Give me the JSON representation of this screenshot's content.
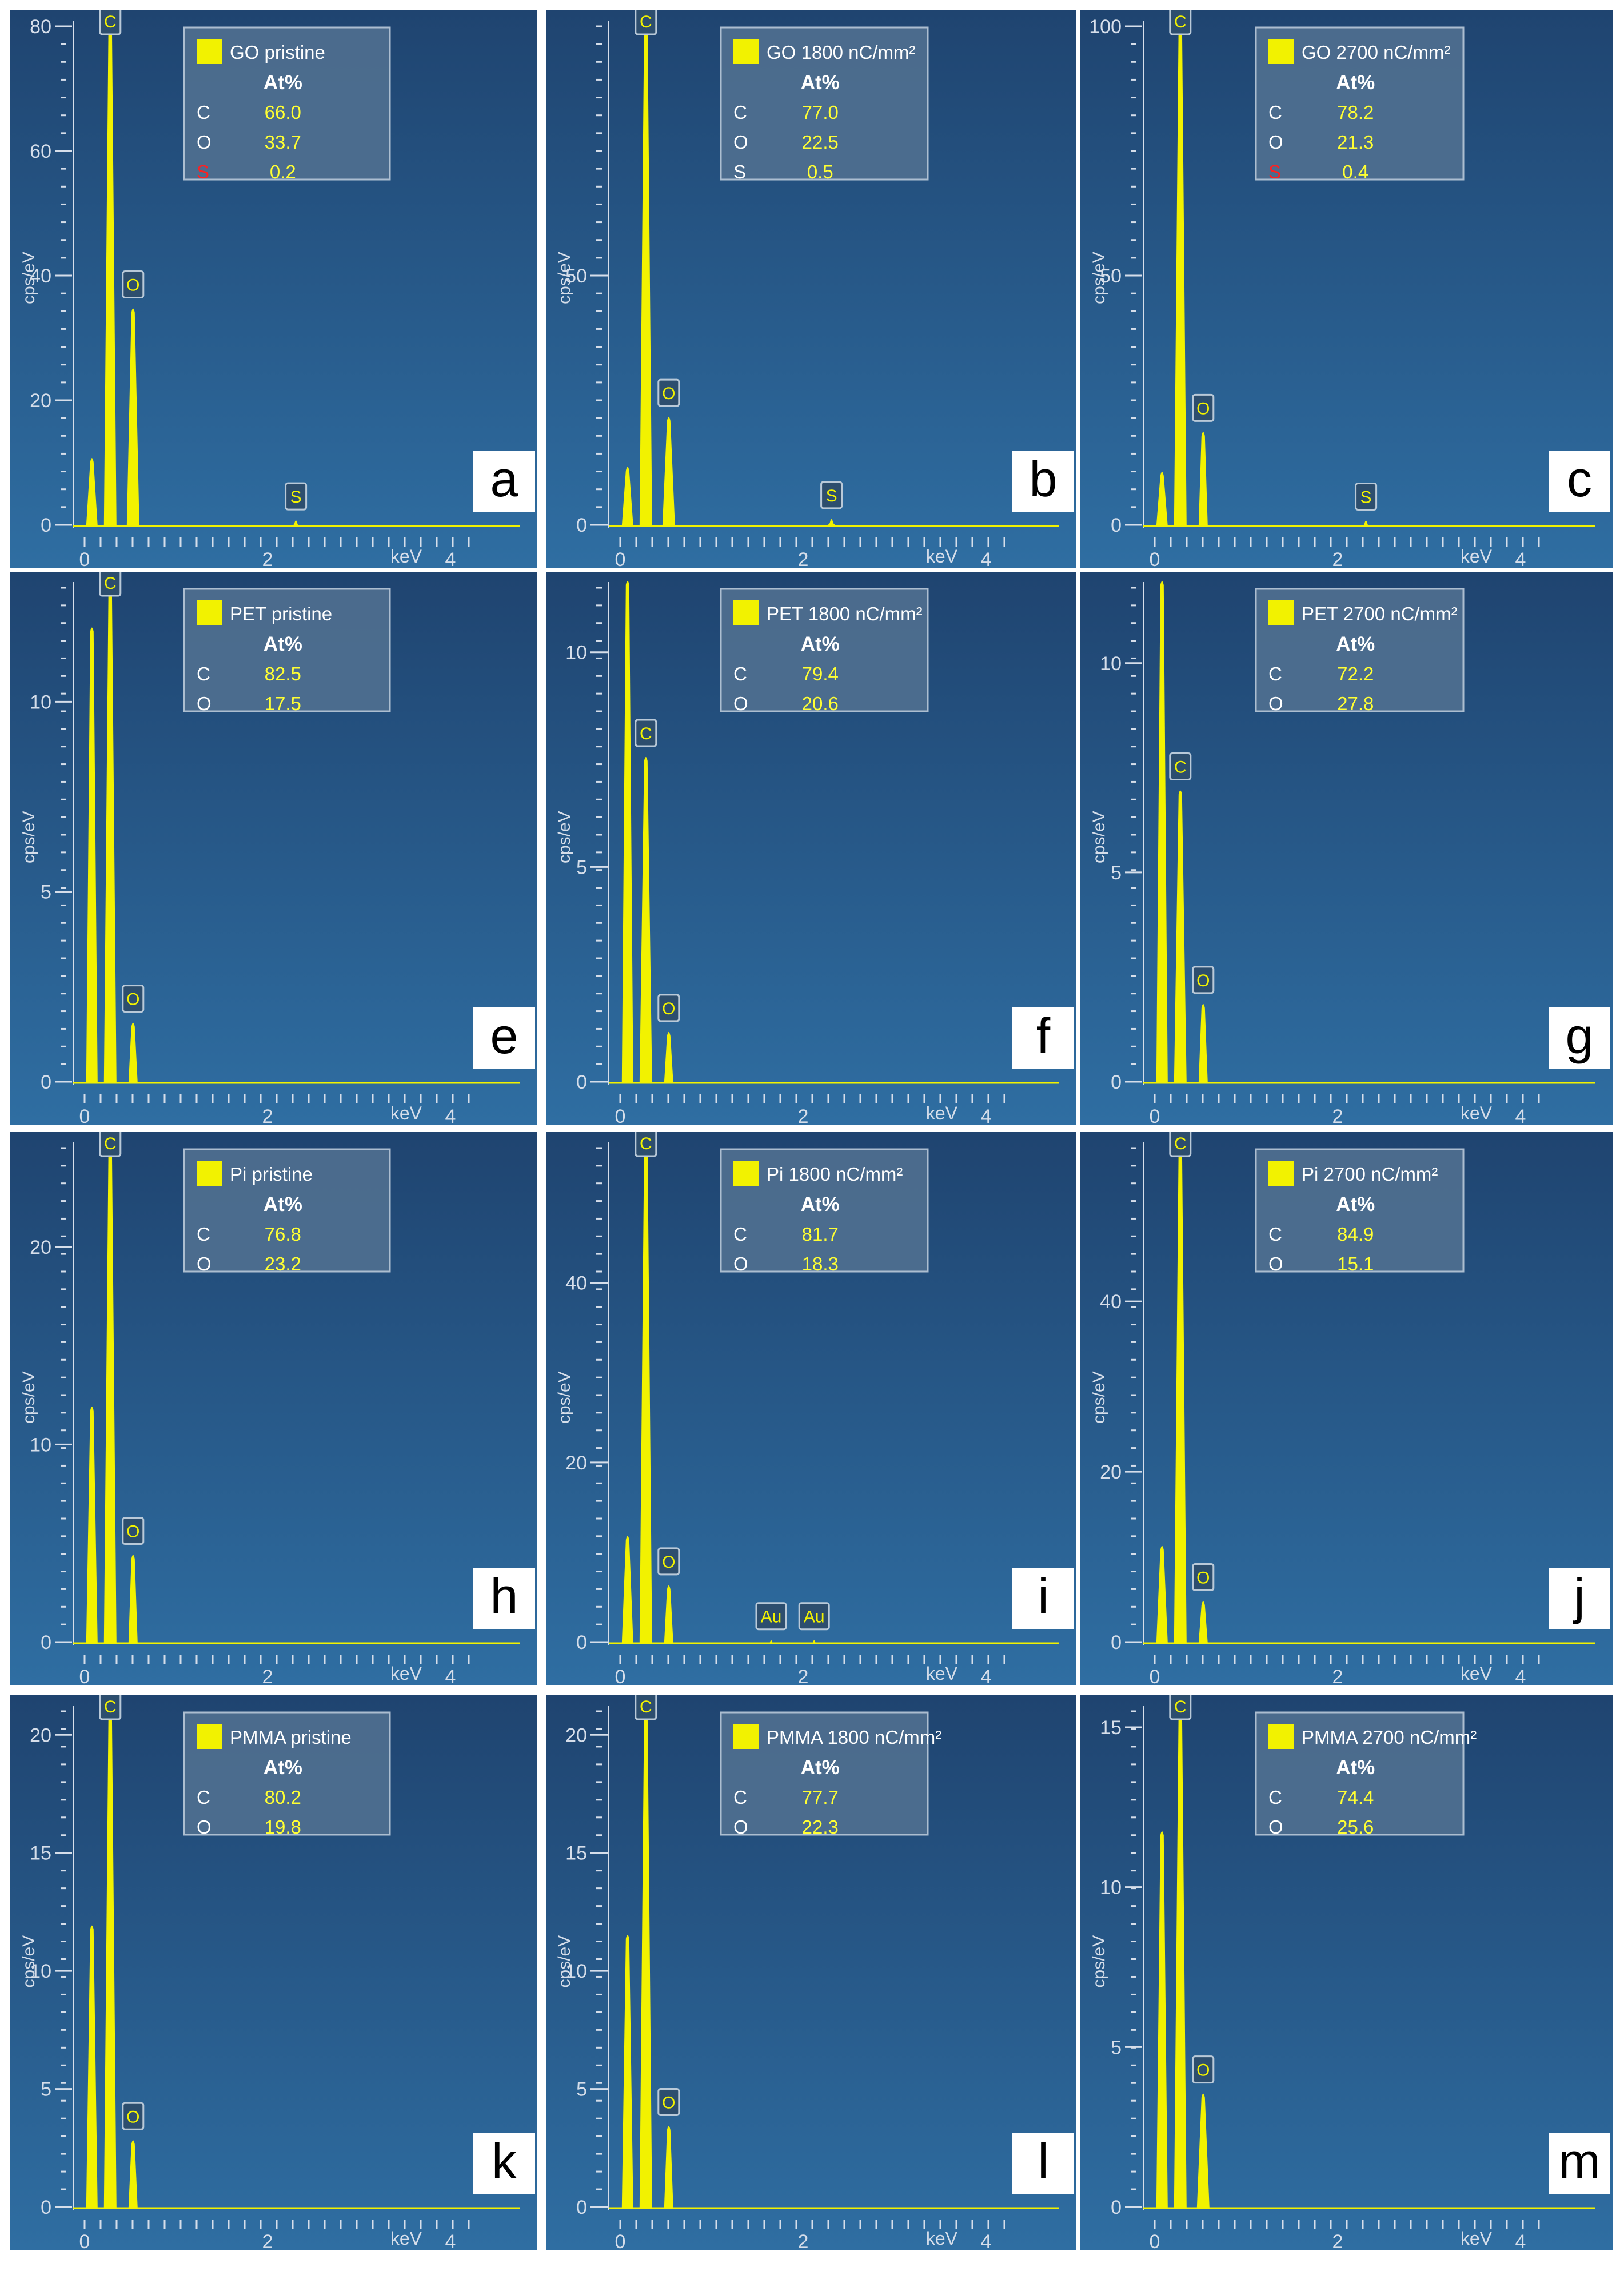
{
  "figure": {
    "x_unit_label": "keV",
    "y_axis_label": "cps/eV"
  },
  "chart_data": [
    {
      "type": "area",
      "panel_letter": "a",
      "legend_title": "GO pristine",
      "table_header": "At%",
      "composition": [
        {
          "element": "C",
          "at_percent": "66.0",
          "color": "#ffffff"
        },
        {
          "element": "O",
          "at_percent": "33.7",
          "color": "#ffffff"
        },
        {
          "element": "S",
          "at_percent": "0.2",
          "color": "#ff2020"
        }
      ],
      "ylabel": "cps/eV",
      "xlabel": "keV",
      "xlim": [
        0,
        4.8
      ],
      "ylim": [
        0,
        80
      ],
      "y_ticks": [
        0,
        20,
        40,
        60,
        80
      ],
      "x_ticks": [
        0,
        2,
        4
      ],
      "bg_peak": 11,
      "peaks": [
        {
          "label": "C",
          "x": 0.28,
          "y": 82
        },
        {
          "label": "O",
          "x": 0.53,
          "y": 35
        },
        {
          "label": "S",
          "x": 2.31,
          "y": 1
        }
      ]
    },
    {
      "type": "area",
      "panel_letter": "b",
      "legend_title": "GO 1800 nC/mm²",
      "table_header": "At%",
      "composition": [
        {
          "element": "C",
          "at_percent": "77.0",
          "color": "#ffffff"
        },
        {
          "element": "O",
          "at_percent": "22.5",
          "color": "#ffffff"
        },
        {
          "element": "S",
          "at_percent": "0.5",
          "color": "#ffffff"
        }
      ],
      "ylabel": "cps/eV",
      "xlabel": "keV",
      "xlim": [
        0,
        4.8
      ],
      "ylim": [
        0,
        100
      ],
      "y_ticks": [
        0,
        50
      ],
      "x_ticks": [
        0,
        2,
        4
      ],
      "bg_peak": 12,
      "peaks": [
        {
          "label": "C",
          "x": 0.28,
          "y": 102
        },
        {
          "label": "O",
          "x": 0.53,
          "y": 22
        },
        {
          "label": "S",
          "x": 2.31,
          "y": 1.5
        }
      ]
    },
    {
      "type": "area",
      "panel_letter": "c",
      "legend_title": "GO 2700 nC/mm²",
      "table_header": "At%",
      "composition": [
        {
          "element": "C",
          "at_percent": "78.2",
          "color": "#ffffff"
        },
        {
          "element": "O",
          "at_percent": "21.3",
          "color": "#ffffff"
        },
        {
          "element": "S",
          "at_percent": "0.4",
          "color": "#ff2020"
        }
      ],
      "ylabel": "cps/eV",
      "xlabel": "keV",
      "xlim": [
        0,
        4.8
      ],
      "ylim": [
        0,
        100
      ],
      "y_ticks": [
        0,
        50,
        100
      ],
      "x_ticks": [
        0,
        2,
        4
      ],
      "bg_peak": 11,
      "peaks": [
        {
          "label": "C",
          "x": 0.28,
          "y": 102
        },
        {
          "label": "O",
          "x": 0.53,
          "y": 19
        },
        {
          "label": "S",
          "x": 2.31,
          "y": 1.2
        }
      ]
    },
    {
      "type": "area",
      "panel_letter": "e",
      "legend_title": "PET pristine",
      "table_header": "At%",
      "composition": [
        {
          "element": "C",
          "at_percent": "82.5",
          "color": "#ffffff"
        },
        {
          "element": "O",
          "at_percent": "17.5",
          "color": "#ffffff"
        }
      ],
      "ylabel": "cps/eV",
      "xlabel": "keV",
      "xlim": [
        0,
        4.8
      ],
      "ylim": [
        0,
        13
      ],
      "y_ticks": [
        0,
        5,
        10
      ],
      "x_ticks": [
        0,
        2,
        4
      ],
      "bg_peak": 12,
      "peaks": [
        {
          "label": "C",
          "x": 0.28,
          "y": 13.2
        },
        {
          "label": "O",
          "x": 0.53,
          "y": 1.6
        }
      ]
    },
    {
      "type": "area",
      "panel_letter": "f",
      "legend_title": "PET 1800 nC/mm²",
      "table_header": "At%",
      "composition": [
        {
          "element": "C",
          "at_percent": "79.4",
          "color": "#ffffff"
        },
        {
          "element": "O",
          "at_percent": "20.6",
          "color": "#ffffff"
        }
      ],
      "ylabel": "cps/eV",
      "xlabel": "keV",
      "xlim": [
        0,
        4.8
      ],
      "ylim": [
        0,
        11.5
      ],
      "y_ticks": [
        0,
        5,
        10
      ],
      "x_ticks": [
        0,
        2,
        4
      ],
      "bg_peak": 11.7,
      "peaks": [
        {
          "label": "C",
          "x": 0.28,
          "y": 7.6
        },
        {
          "label": "O",
          "x": 0.53,
          "y": 1.2
        }
      ]
    },
    {
      "type": "area",
      "panel_letter": "g",
      "legend_title": "PET 2700 nC/mm²",
      "table_header": "At%",
      "composition": [
        {
          "element": "C",
          "at_percent": "72.2",
          "color": "#ffffff"
        },
        {
          "element": "O",
          "at_percent": "27.8",
          "color": "#ffffff"
        }
      ],
      "ylabel": "cps/eV",
      "xlabel": "keV",
      "xlim": [
        0,
        4.8
      ],
      "ylim": [
        0,
        11.8
      ],
      "y_ticks": [
        0,
        5,
        10
      ],
      "x_ticks": [
        0,
        2,
        4
      ],
      "bg_peak": 12,
      "peaks": [
        {
          "label": "C",
          "x": 0.28,
          "y": 7
        },
        {
          "label": "O",
          "x": 0.53,
          "y": 1.9
        }
      ]
    },
    {
      "type": "area",
      "panel_letter": "h",
      "legend_title": "Pi pristine",
      "table_header": "At%",
      "composition": [
        {
          "element": "C",
          "at_percent": "76.8",
          "color": "#ffffff"
        },
        {
          "element": "O",
          "at_percent": "23.2",
          "color": "#ffffff"
        }
      ],
      "ylabel": "cps/eV",
      "xlabel": "keV",
      "xlim": [
        0,
        4.8
      ],
      "ylim": [
        0,
        25
      ],
      "y_ticks": [
        0,
        10,
        20
      ],
      "x_ticks": [
        0,
        2,
        4
      ],
      "bg_peak": 12,
      "peaks": [
        {
          "label": "C",
          "x": 0.28,
          "y": 25.5
        },
        {
          "label": "O",
          "x": 0.53,
          "y": 4.5
        }
      ]
    },
    {
      "type": "area",
      "panel_letter": "i",
      "legend_title": "Pi  1800 nC/mm²",
      "table_header": "At%",
      "composition": [
        {
          "element": "C",
          "at_percent": "81.7",
          "color": "#ffffff"
        },
        {
          "element": "O",
          "at_percent": "18.3",
          "color": "#ffffff"
        }
      ],
      "ylabel": "cps/eV",
      "xlabel": "keV",
      "xlim": [
        0,
        4.8
      ],
      "ylim": [
        0,
        55
      ],
      "y_ticks": [
        0,
        20,
        40
      ],
      "x_ticks": [
        0,
        2,
        4
      ],
      "bg_peak": 12,
      "peaks": [
        {
          "label": "C",
          "x": 0.28,
          "y": 56
        },
        {
          "label": "O",
          "x": 0.53,
          "y": 6.5
        },
        {
          "label": "Au",
          "x": 1.65,
          "y": 0.4
        },
        {
          "label": "Au",
          "x": 2.12,
          "y": 0.4
        }
      ]
    },
    {
      "type": "area",
      "panel_letter": "j",
      "legend_title": "Pi 2700 nC/mm²",
      "table_header": "At%",
      "composition": [
        {
          "element": "C",
          "at_percent": "84.9",
          "color": "#ffffff"
        },
        {
          "element": "O",
          "at_percent": "15.1",
          "color": "#ffffff"
        }
      ],
      "ylabel": "cps/eV",
      "xlabel": "keV",
      "xlim": [
        0,
        4.8
      ],
      "ylim": [
        0,
        58
      ],
      "y_ticks": [
        0,
        20,
        40
      ],
      "x_ticks": [
        0,
        2,
        4
      ],
      "bg_peak": 11.5,
      "peaks": [
        {
          "label": "C",
          "x": 0.28,
          "y": 59
        },
        {
          "label": "O",
          "x": 0.53,
          "y": 5
        }
      ]
    },
    {
      "type": "area",
      "panel_letter": "k",
      "legend_title": "PMMA pristine",
      "table_header": "At%",
      "composition": [
        {
          "element": "C",
          "at_percent": "80.2",
          "color": "#ffffff"
        },
        {
          "element": "O",
          "at_percent": "19.8",
          "color": "#ffffff"
        }
      ],
      "ylabel": "cps/eV",
      "xlabel": "keV",
      "xlim": [
        0,
        4.8
      ],
      "ylim": [
        0,
        21
      ],
      "y_ticks": [
        0,
        5,
        10,
        15,
        20
      ],
      "x_ticks": [
        0,
        2,
        4
      ],
      "bg_peak": 12,
      "peaks": [
        {
          "label": "C",
          "x": 0.28,
          "y": 21.3
        },
        {
          "label": "O",
          "x": 0.53,
          "y": 2.9
        }
      ]
    },
    {
      "type": "area",
      "panel_letter": "l",
      "legend_title": "PMMA 1800 nC/mm²",
      "table_header": "At%",
      "composition": [
        {
          "element": "C",
          "at_percent": "77.7",
          "color": "#ffffff"
        },
        {
          "element": "O",
          "at_percent": "22.3",
          "color": "#ffffff"
        }
      ],
      "ylabel": "cps/eV",
      "xlabel": "keV",
      "xlim": [
        0,
        4.8
      ],
      "ylim": [
        0,
        21
      ],
      "y_ticks": [
        0,
        5,
        10,
        15,
        20
      ],
      "x_ticks": [
        0,
        2,
        4
      ],
      "bg_peak": 11.6,
      "peaks": [
        {
          "label": "C",
          "x": 0.28,
          "y": 21.3
        },
        {
          "label": "O",
          "x": 0.53,
          "y": 3.5
        }
      ]
    },
    {
      "type": "area",
      "panel_letter": "m",
      "legend_title": "PMMA 2700 nC/mm²",
      "table_header": "At%",
      "composition": [
        {
          "element": "C",
          "at_percent": "74.4",
          "color": "#ffffff"
        },
        {
          "element": "O",
          "at_percent": "25.6",
          "color": "#ffffff"
        }
      ],
      "ylabel": "cps/eV",
      "xlabel": "keV",
      "xlim": [
        0,
        4.8
      ],
      "ylim": [
        0,
        15.5
      ],
      "y_ticks": [
        0,
        5,
        10,
        15
      ],
      "x_ticks": [
        0,
        2,
        4
      ],
      "bg_peak": 11.8,
      "peaks": [
        {
          "label": "C",
          "x": 0.28,
          "y": 15.8
        },
        {
          "label": "O",
          "x": 0.53,
          "y": 3.6
        }
      ]
    }
  ],
  "colors": {
    "panel_bg_top": "#1f4470",
    "panel_bg_bottom": "#2f6ea2",
    "spectrum": "#f2f200",
    "axis_text": "#d6deea",
    "legend_bg": "#4f6f90",
    "legend_border": "#b8c8d8",
    "value_text": "#ffff33",
    "letter_bg": "#ffffff",
    "letter_text": "#000000"
  }
}
